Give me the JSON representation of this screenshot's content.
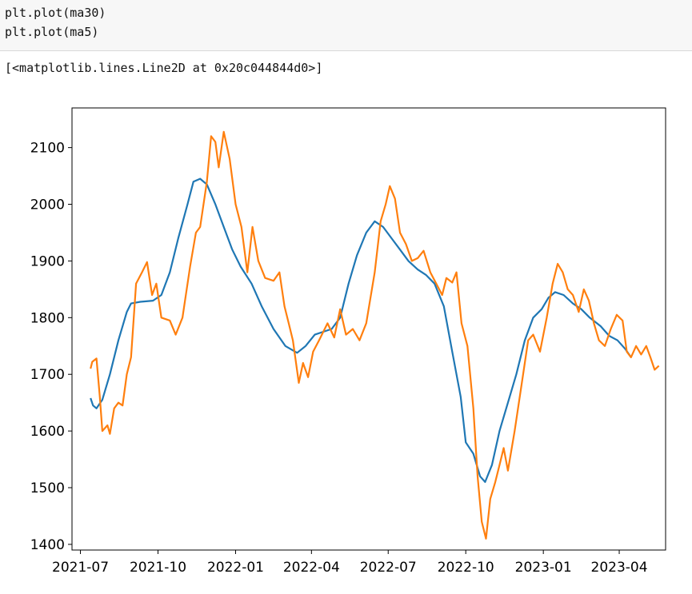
{
  "code": {
    "lines": [
      "plt.plot(ma30)",
      "plt.plot(ma5)"
    ]
  },
  "output": {
    "text": "[<matplotlib.lines.Line2D at 0x20c044844d0>]"
  },
  "chart_data": {
    "type": "line",
    "title": "",
    "xlabel": "",
    "ylabel": "",
    "xlim": [
      "2021-06-21",
      "2023-05-26"
    ],
    "ylim": [
      1390,
      2170
    ],
    "grid": false,
    "x_ticks": [
      "2021-07",
      "2021-10",
      "2022-01",
      "2022-04",
      "2022-07",
      "2022-10",
      "2023-01",
      "2023-04"
    ],
    "y_ticks": [
      1400,
      1500,
      1600,
      1700,
      1800,
      1900,
      2000,
      2100
    ],
    "series": [
      {
        "color": "#1f77b4",
        "points": [
          [
            "2021-07-13",
            1658
          ],
          [
            "2021-07-16",
            1645
          ],
          [
            "2021-07-20",
            1640
          ],
          [
            "2021-07-27",
            1655
          ],
          [
            "2021-08-05",
            1700
          ],
          [
            "2021-08-15",
            1760
          ],
          [
            "2021-08-25",
            1810
          ],
          [
            "2021-08-30",
            1825
          ],
          [
            "2021-09-10",
            1828
          ],
          [
            "2021-09-25",
            1830
          ],
          [
            "2021-10-05",
            1840
          ],
          [
            "2021-10-15",
            1880
          ],
          [
            "2021-10-25",
            1940
          ],
          [
            "2021-11-05",
            2000
          ],
          [
            "2021-11-12",
            2040
          ],
          [
            "2021-11-20",
            2045
          ],
          [
            "2021-11-28",
            2035
          ],
          [
            "2021-12-08",
            2000
          ],
          [
            "2021-12-18",
            1960
          ],
          [
            "2021-12-28",
            1920
          ],
          [
            "2022-01-07",
            1890
          ],
          [
            "2022-01-20",
            1860
          ],
          [
            "2022-02-01",
            1820
          ],
          [
            "2022-02-15",
            1780
          ],
          [
            "2022-03-01",
            1750
          ],
          [
            "2022-03-15",
            1738
          ],
          [
            "2022-03-25",
            1750
          ],
          [
            "2022-04-05",
            1770
          ],
          [
            "2022-04-15",
            1775
          ],
          [
            "2022-04-25",
            1780
          ],
          [
            "2022-05-05",
            1800
          ],
          [
            "2022-05-15",
            1860
          ],
          [
            "2022-05-25",
            1910
          ],
          [
            "2022-06-05",
            1950
          ],
          [
            "2022-06-15",
            1970
          ],
          [
            "2022-06-25",
            1960
          ],
          [
            "2022-07-05",
            1940
          ],
          [
            "2022-07-15",
            1920
          ],
          [
            "2022-07-25",
            1900
          ],
          [
            "2022-08-05",
            1885
          ],
          [
            "2022-08-15",
            1875
          ],
          [
            "2022-08-25",
            1860
          ],
          [
            "2022-09-05",
            1820
          ],
          [
            "2022-09-15",
            1740
          ],
          [
            "2022-09-25",
            1660
          ],
          [
            "2022-10-01",
            1580
          ],
          [
            "2022-10-10",
            1560
          ],
          [
            "2022-10-18",
            1520
          ],
          [
            "2022-10-24",
            1510
          ],
          [
            "2022-11-01",
            1540
          ],
          [
            "2022-11-10",
            1600
          ],
          [
            "2022-11-20",
            1650
          ],
          [
            "2022-11-30",
            1700
          ],
          [
            "2022-12-10",
            1760
          ],
          [
            "2022-12-20",
            1800
          ],
          [
            "2022-12-30",
            1815
          ],
          [
            "2023-01-07",
            1835
          ],
          [
            "2023-01-15",
            1845
          ],
          [
            "2023-01-25",
            1840
          ],
          [
            "2023-02-05",
            1825
          ],
          [
            "2023-02-15",
            1815
          ],
          [
            "2023-02-25",
            1800
          ],
          [
            "2023-03-10",
            1785
          ],
          [
            "2023-03-20",
            1768
          ],
          [
            "2023-03-30",
            1760
          ],
          [
            "2023-04-08",
            1745
          ],
          [
            "2023-04-15",
            1730
          ]
        ]
      },
      {
        "color": "#ff7f0e",
        "points": [
          [
            "2021-07-13",
            1710
          ],
          [
            "2021-07-15",
            1722
          ],
          [
            "2021-07-20",
            1728
          ],
          [
            "2021-07-24",
            1660
          ],
          [
            "2021-07-27",
            1600
          ],
          [
            "2021-08-02",
            1610
          ],
          [
            "2021-08-05",
            1595
          ],
          [
            "2021-08-10",
            1640
          ],
          [
            "2021-08-15",
            1650
          ],
          [
            "2021-08-20",
            1645
          ],
          [
            "2021-08-25",
            1700
          ],
          [
            "2021-08-30",
            1730
          ],
          [
            "2021-09-05",
            1860
          ],
          [
            "2021-09-12",
            1880
          ],
          [
            "2021-09-18",
            1898
          ],
          [
            "2021-09-24",
            1840
          ],
          [
            "2021-09-29",
            1860
          ],
          [
            "2021-10-05",
            1800
          ],
          [
            "2021-10-15",
            1795
          ],
          [
            "2021-10-22",
            1770
          ],
          [
            "2021-10-30",
            1800
          ],
          [
            "2021-11-08",
            1890
          ],
          [
            "2021-11-15",
            1950
          ],
          [
            "2021-11-20",
            1960
          ],
          [
            "2021-11-28",
            2040
          ],
          [
            "2021-12-03",
            2120
          ],
          [
            "2021-12-08",
            2110
          ],
          [
            "2021-12-12",
            2065
          ],
          [
            "2021-12-18",
            2128
          ],
          [
            "2021-12-25",
            2080
          ],
          [
            "2022-01-01",
            2000
          ],
          [
            "2022-01-08",
            1960
          ],
          [
            "2022-01-15",
            1880
          ],
          [
            "2022-01-21",
            1960
          ],
          [
            "2022-01-28",
            1900
          ],
          [
            "2022-02-05",
            1870
          ],
          [
            "2022-02-15",
            1865
          ],
          [
            "2022-02-22",
            1880
          ],
          [
            "2022-02-28",
            1820
          ],
          [
            "2022-03-05",
            1790
          ],
          [
            "2022-03-10",
            1760
          ],
          [
            "2022-03-17",
            1685
          ],
          [
            "2022-03-22",
            1720
          ],
          [
            "2022-03-28",
            1695
          ],
          [
            "2022-04-03",
            1740
          ],
          [
            "2022-04-10",
            1760
          ],
          [
            "2022-04-20",
            1790
          ],
          [
            "2022-04-28",
            1765
          ],
          [
            "2022-05-05",
            1815
          ],
          [
            "2022-05-12",
            1770
          ],
          [
            "2022-05-20",
            1780
          ],
          [
            "2022-05-28",
            1760
          ],
          [
            "2022-06-05",
            1790
          ],
          [
            "2022-06-15",
            1880
          ],
          [
            "2022-06-22",
            1970
          ],
          [
            "2022-06-28",
            2000
          ],
          [
            "2022-07-03",
            2032
          ],
          [
            "2022-07-09",
            2010
          ],
          [
            "2022-07-15",
            1950
          ],
          [
            "2022-07-22",
            1930
          ],
          [
            "2022-07-29",
            1900
          ],
          [
            "2022-08-05",
            1905
          ],
          [
            "2022-08-12",
            1918
          ],
          [
            "2022-08-20",
            1880
          ],
          [
            "2022-08-27",
            1860
          ],
          [
            "2022-09-03",
            1840
          ],
          [
            "2022-09-08",
            1870
          ],
          [
            "2022-09-15",
            1862
          ],
          [
            "2022-09-20",
            1880
          ],
          [
            "2022-09-26",
            1790
          ],
          [
            "2022-10-03",
            1750
          ],
          [
            "2022-10-10",
            1640
          ],
          [
            "2022-10-15",
            1520
          ],
          [
            "2022-10-20",
            1440
          ],
          [
            "2022-10-25",
            1410
          ],
          [
            "2022-10-30",
            1480
          ],
          [
            "2022-11-05",
            1510
          ],
          [
            "2022-11-10",
            1540
          ],
          [
            "2022-11-15",
            1570
          ],
          [
            "2022-11-20",
            1530
          ],
          [
            "2022-11-28",
            1600
          ],
          [
            "2022-12-08",
            1700
          ],
          [
            "2022-12-14",
            1760
          ],
          [
            "2022-12-20",
            1770
          ],
          [
            "2022-12-28",
            1740
          ],
          [
            "2023-01-05",
            1800
          ],
          [
            "2023-01-12",
            1860
          ],
          [
            "2023-01-18",
            1895
          ],
          [
            "2023-01-24",
            1880
          ],
          [
            "2023-01-30",
            1850
          ],
          [
            "2023-02-05",
            1840
          ],
          [
            "2023-02-12",
            1810
          ],
          [
            "2023-02-18",
            1850
          ],
          [
            "2023-02-24",
            1830
          ],
          [
            "2023-03-02",
            1790
          ],
          [
            "2023-03-08",
            1760
          ],
          [
            "2023-03-15",
            1750
          ],
          [
            "2023-03-22",
            1780
          ],
          [
            "2023-03-29",
            1805
          ],
          [
            "2023-04-05",
            1795
          ],
          [
            "2023-04-10",
            1740
          ],
          [
            "2023-04-15",
            1730
          ],
          [
            "2023-04-21",
            1750
          ],
          [
            "2023-04-27",
            1735
          ],
          [
            "2023-05-03",
            1750
          ],
          [
            "2023-05-08",
            1730
          ],
          [
            "2023-05-13",
            1708
          ],
          [
            "2023-05-18",
            1715
          ]
        ]
      }
    ]
  }
}
